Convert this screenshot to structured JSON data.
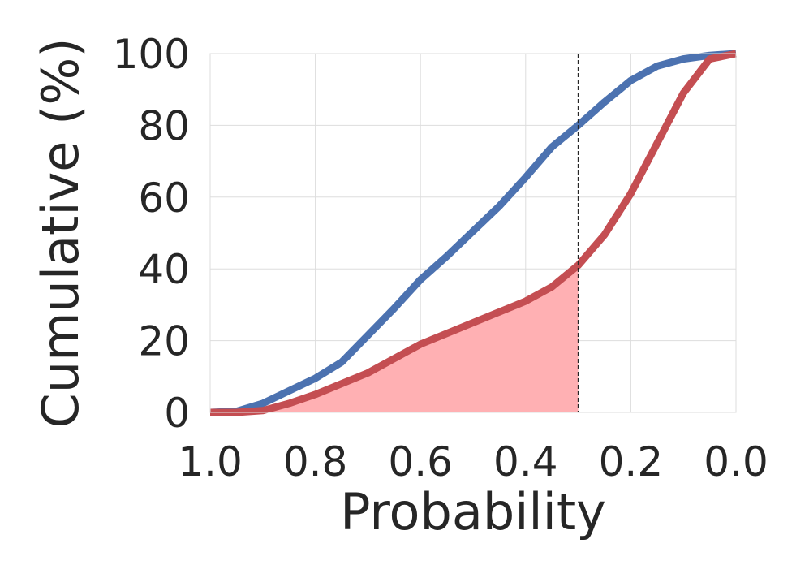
{
  "chart_data": {
    "type": "line",
    "title": "",
    "xlabel": "Probability",
    "ylabel": "Cumulative (%)",
    "xlim": [
      1.0,
      0.0
    ],
    "ylim": [
      0,
      100
    ],
    "x_inverted": true,
    "grid": true,
    "x_ticks": [
      "1.0",
      "0.8",
      "0.6",
      "0.4",
      "0.2",
      "0.0"
    ],
    "y_ticks": [
      "0",
      "20",
      "40",
      "60",
      "80",
      "100"
    ],
    "x": [
      1.0,
      0.95,
      0.9,
      0.85,
      0.8,
      0.75,
      0.7,
      0.65,
      0.6,
      0.55,
      0.5,
      0.45,
      0.4,
      0.35,
      0.3,
      0.25,
      0.2,
      0.15,
      0.1,
      0.05,
      0.0
    ],
    "series": [
      {
        "color": "#4c72b0",
        "values": [
          0,
          0.3,
          2.5,
          6,
          9.5,
          14,
          21.5,
          29,
          37,
          43.5,
          50.5,
          57.5,
          65.5,
          74,
          80,
          86.5,
          92.5,
          96.5,
          98.5,
          99.5,
          100
        ]
      },
      {
        "color": "#c44e52",
        "values": [
          0,
          0,
          0.5,
          2.5,
          5,
          8,
          11,
          15,
          19,
          22,
          25,
          28,
          31,
          35,
          41,
          49.5,
          61,
          75,
          89,
          98.5,
          100
        ]
      }
    ],
    "threshold": {
      "x": 0.3,
      "style": "dashed",
      "color": "#262626"
    },
    "shaded_region": {
      "series_index": 1,
      "from_x": 1.0,
      "to_x": 0.3,
      "color": "#ffb0b3"
    }
  }
}
